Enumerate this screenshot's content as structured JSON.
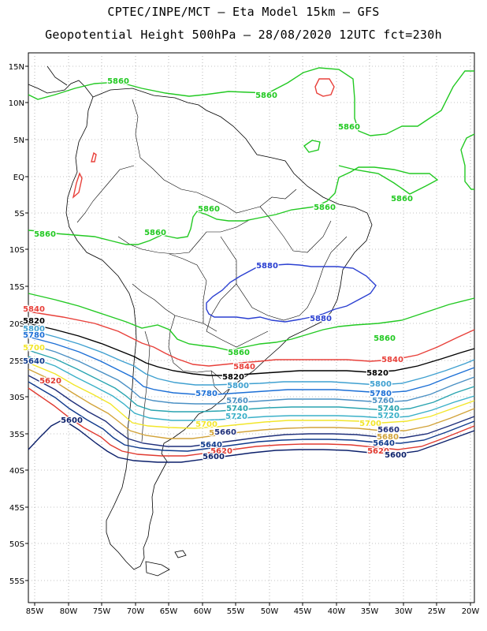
{
  "title_line1": "CPTEC/INPE/MCT –  Eta Model 15km – GFS",
  "title_line2": "Geopotential Height 500hPa – 28/08/2020 12UTC fct=230h",
  "lat_labels": [
    "15N",
    "10N",
    "5N",
    "EQ",
    "5S",
    "10S",
    "15S",
    "20S",
    "25S",
    "30S",
    "35S",
    "40S",
    "45S",
    "50S",
    "55S"
  ],
  "lon_labels": [
    "85W",
    "80W",
    "75W",
    "70W",
    "65W",
    "60W",
    "55W",
    "50W",
    "45W",
    "40W",
    "35W",
    "30W",
    "25W",
    "20W"
  ],
  "contour_colors": {
    "5880": "#2a3fd1",
    "5860": "#22c922",
    "5840": "#e8403a",
    "5820": "#000000",
    "5800": "#3fa0d0",
    "5780": "#1c6fd6",
    "5760": "#4a90c4",
    "5740": "#2aa4b0",
    "5720": "#3ab0c8",
    "5700": "#f2e62a",
    "5680": "#d2a33a",
    "5660": "#1f2f7a",
    "5640": "#0f3a8c",
    "5620": "#e03a30",
    "5600": "#0b1f6a"
  },
  "contour_labels": [
    {
      "text": "5860",
      "lv": "5860"
    },
    {
      "text": "5860",
      "lv": "5860"
    },
    {
      "text": "5860",
      "lv": "5860"
    },
    {
      "text": "5860",
      "lv": "5860"
    },
    {
      "text": "5860",
      "lv": "5860"
    },
    {
      "text": "5860",
      "lv": "5860"
    },
    {
      "text": "5860",
      "lv": "5860"
    },
    {
      "text": "5860",
      "lv": "5860"
    },
    {
      "text": "5860",
      "lv": "5860"
    },
    {
      "text": "5860",
      "lv": "5860"
    },
    {
      "text": "5880",
      "lv": "5880"
    },
    {
      "text": "5880",
      "lv": "5880"
    },
    {
      "text": "5840",
      "lv": "5840"
    },
    {
      "text": "5840",
      "lv": "5840"
    },
    {
      "text": "5840",
      "lv": "5840"
    },
    {
      "text": "5820",
      "lv": "5820"
    },
    {
      "text": "5820",
      "lv": "5820"
    },
    {
      "text": "5820",
      "lv": "5820"
    },
    {
      "text": "5800",
      "lv": "5800"
    },
    {
      "text": "5800",
      "lv": "5800"
    },
    {
      "text": "5800",
      "lv": "5800"
    },
    {
      "text": "5780",
      "lv": "5780"
    },
    {
      "text": "5780",
      "lv": "5780"
    },
    {
      "text": "5780",
      "lv": "5780"
    },
    {
      "text": "5760",
      "lv": "5760"
    },
    {
      "text": "5760",
      "lv": "5760"
    },
    {
      "text": "5740",
      "lv": "5740"
    },
    {
      "text": "5740",
      "lv": "5740"
    },
    {
      "text": "5720",
      "lv": "5720"
    },
    {
      "text": "5720",
      "lv": "5720"
    },
    {
      "text": "5700",
      "lv": "5700"
    },
    {
      "text": "5700",
      "lv": "5700"
    },
    {
      "text": "5700",
      "lv": "5700"
    },
    {
      "text": "5680",
      "lv": "5680"
    },
    {
      "text": "5680",
      "lv": "5680"
    },
    {
      "text": "5660",
      "lv": "5660"
    },
    {
      "text": "5660",
      "lv": "5660"
    },
    {
      "text": "5640",
      "lv": "5640"
    },
    {
      "text": "5640",
      "lv": "5640"
    },
    {
      "text": "5640",
      "lv": "5640"
    },
    {
      "text": "5620",
      "lv": "5620"
    },
    {
      "text": "5620",
      "lv": "5620"
    },
    {
      "text": "5620",
      "lv": "5620"
    },
    {
      "text": "5600",
      "lv": "5600"
    },
    {
      "text": "5600",
      "lv": "5600"
    },
    {
      "text": "5600",
      "lv": "5600"
    }
  ]
}
